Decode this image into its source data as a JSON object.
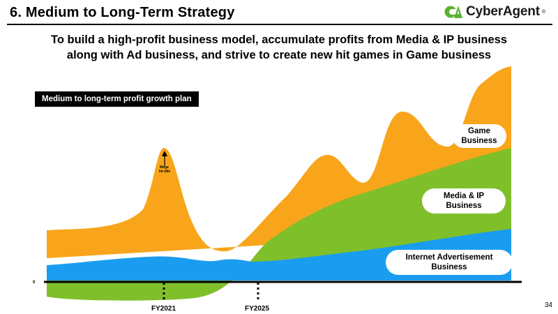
{
  "header": {
    "title": "6.  Medium to Long-Term Strategy",
    "company": "CyberAgent",
    "company_mark": "®",
    "brand_color": "#5ab431"
  },
  "subtitle": {
    "line1": "To build a high-profit business model, accumulate profits from Media & IP business",
    "line2": "along with Ad business, and strive to create new hit games in Game business"
  },
  "chart": {
    "plan_label": "Medium to long-term profit growth plan",
    "zero_label": "0",
    "annotation": "Mega hit title",
    "x_ticks": [
      "FY2021",
      "FY2025"
    ],
    "segments": [
      {
        "name": "Game Business",
        "color": "#f9a51b"
      },
      {
        "name": "Media & IP Business",
        "color": "#7fbf2a"
      },
      {
        "name": "Internet Advertisement Business",
        "color": "#1a9df0"
      }
    ]
  },
  "labels": {
    "game_line1": "Game",
    "game_line2": "Business",
    "media_line1": "Media & IP",
    "media_line2": "Business",
    "ad_line1": "Internet Advertisement",
    "ad_line2": "Business"
  },
  "page_number": "34"
}
